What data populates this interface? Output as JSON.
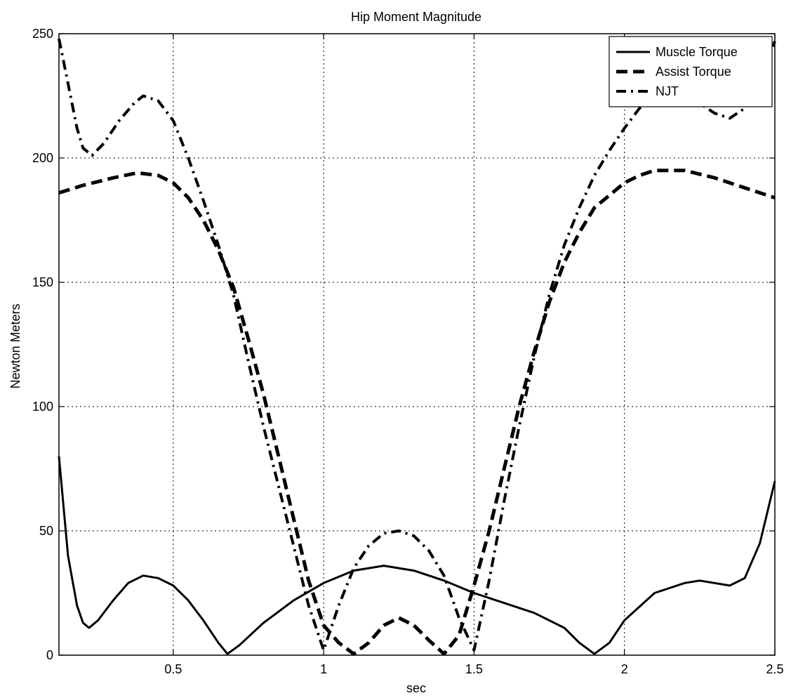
{
  "chart_data": {
    "type": "line",
    "title": "Hip Moment Magnitude",
    "xlabel": "sec",
    "ylabel": "Newton Meters",
    "xlim": [
      0.12,
      2.5
    ],
    "ylim": [
      0,
      250
    ],
    "x_ticks": [
      0.5,
      1,
      1.5,
      2,
      2.5
    ],
    "x_tick_labels": [
      "0.5",
      "1",
      "1.5",
      "2",
      "2.5"
    ],
    "y_ticks": [
      0,
      50,
      100,
      150,
      200,
      250
    ],
    "y_tick_labels": [
      "0",
      "50",
      "100",
      "150",
      "200",
      "250"
    ],
    "grid": true,
    "legend_position": "top-right",
    "series": [
      {
        "name": "Muscle Torque",
        "style": "solid",
        "color": "#000000",
        "points": [
          [
            0.12,
            80
          ],
          [
            0.15,
            40
          ],
          [
            0.18,
            20
          ],
          [
            0.2,
            13
          ],
          [
            0.22,
            11
          ],
          [
            0.25,
            14
          ],
          [
            0.3,
            22
          ],
          [
            0.35,
            29
          ],
          [
            0.4,
            32
          ],
          [
            0.45,
            31
          ],
          [
            0.5,
            28
          ],
          [
            0.55,
            22
          ],
          [
            0.6,
            14
          ],
          [
            0.65,
            5
          ],
          [
            0.68,
            0.5
          ],
          [
            0.72,
            4
          ],
          [
            0.8,
            13
          ],
          [
            0.9,
            22
          ],
          [
            1.0,
            29
          ],
          [
            1.1,
            34
          ],
          [
            1.2,
            36
          ],
          [
            1.3,
            34
          ],
          [
            1.4,
            30
          ],
          [
            1.5,
            25
          ],
          [
            1.6,
            21
          ],
          [
            1.7,
            17
          ],
          [
            1.8,
            11
          ],
          [
            1.85,
            5
          ],
          [
            1.9,
            0.5
          ],
          [
            1.95,
            5
          ],
          [
            2.0,
            14
          ],
          [
            2.1,
            25
          ],
          [
            2.2,
            29
          ],
          [
            2.25,
            30
          ],
          [
            2.3,
            29
          ],
          [
            2.35,
            28
          ],
          [
            2.4,
            31
          ],
          [
            2.45,
            45
          ],
          [
            2.5,
            70
          ]
        ]
      },
      {
        "name": "Assist Torque",
        "style": "dashed",
        "color": "#000000",
        "points": [
          [
            0.12,
            186
          ],
          [
            0.2,
            189
          ],
          [
            0.3,
            192
          ],
          [
            0.38,
            194
          ],
          [
            0.45,
            193
          ],
          [
            0.5,
            190
          ],
          [
            0.55,
            184
          ],
          [
            0.6,
            175
          ],
          [
            0.65,
            163
          ],
          [
            0.7,
            148
          ],
          [
            0.75,
            127
          ],
          [
            0.8,
            105
          ],
          [
            0.85,
            80
          ],
          [
            0.9,
            55
          ],
          [
            0.95,
            30
          ],
          [
            1.0,
            12
          ],
          [
            1.05,
            5
          ],
          [
            1.1,
            0.5
          ],
          [
            1.15,
            5
          ],
          [
            1.2,
            12
          ],
          [
            1.25,
            15
          ],
          [
            1.3,
            12
          ],
          [
            1.35,
            6
          ],
          [
            1.4,
            0.5
          ],
          [
            1.45,
            8
          ],
          [
            1.5,
            28
          ],
          [
            1.55,
            50
          ],
          [
            1.6,
            75
          ],
          [
            1.65,
            100
          ],
          [
            1.7,
            122
          ],
          [
            1.75,
            142
          ],
          [
            1.8,
            158
          ],
          [
            1.85,
            170
          ],
          [
            1.9,
            180
          ],
          [
            1.95,
            185
          ],
          [
            2.0,
            190
          ],
          [
            2.05,
            193
          ],
          [
            2.1,
            195
          ],
          [
            2.2,
            195
          ],
          [
            2.3,
            192
          ],
          [
            2.4,
            188
          ],
          [
            2.5,
            184
          ]
        ]
      },
      {
        "name": "NJT",
        "style": "dashdot",
        "color": "#000000",
        "points": [
          [
            0.12,
            248
          ],
          [
            0.15,
            230
          ],
          [
            0.18,
            212
          ],
          [
            0.2,
            204
          ],
          [
            0.23,
            201
          ],
          [
            0.27,
            206
          ],
          [
            0.32,
            215
          ],
          [
            0.37,
            222
          ],
          [
            0.4,
            225
          ],
          [
            0.45,
            223
          ],
          [
            0.5,
            215
          ],
          [
            0.55,
            200
          ],
          [
            0.6,
            183
          ],
          [
            0.65,
            165
          ],
          [
            0.7,
            145
          ],
          [
            0.75,
            118
          ],
          [
            0.8,
            92
          ],
          [
            0.85,
            68
          ],
          [
            0.9,
            44
          ],
          [
            0.95,
            20
          ],
          [
            1.0,
            2
          ],
          [
            1.05,
            20
          ],
          [
            1.1,
            35
          ],
          [
            1.15,
            44
          ],
          [
            1.2,
            49
          ],
          [
            1.25,
            50
          ],
          [
            1.3,
            48
          ],
          [
            1.35,
            42
          ],
          [
            1.4,
            32
          ],
          [
            1.45,
            15
          ],
          [
            1.5,
            2
          ],
          [
            1.55,
            30
          ],
          [
            1.6,
            62
          ],
          [
            1.65,
            92
          ],
          [
            1.7,
            120
          ],
          [
            1.75,
            145
          ],
          [
            1.8,
            165
          ],
          [
            1.85,
            180
          ],
          [
            1.9,
            193
          ],
          [
            1.95,
            203
          ],
          [
            2.0,
            212
          ],
          [
            2.05,
            220
          ],
          [
            2.1,
            225
          ],
          [
            2.2,
            226
          ],
          [
            2.3,
            218
          ],
          [
            2.35,
            216
          ],
          [
            2.4,
            220
          ],
          [
            2.45,
            230
          ],
          [
            2.5,
            247
          ]
        ]
      }
    ]
  }
}
